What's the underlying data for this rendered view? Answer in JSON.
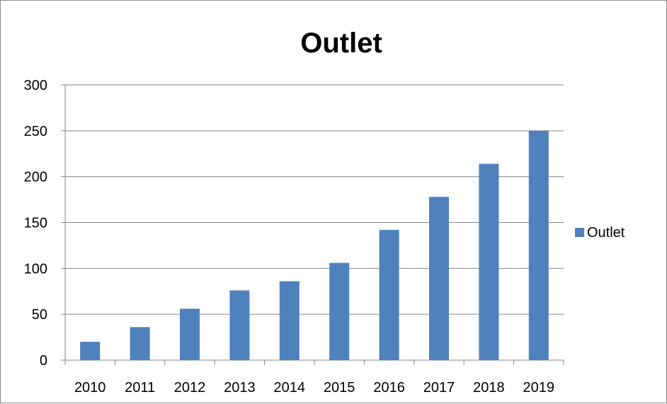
{
  "chart_data": {
    "type": "bar",
    "title": "Outlet",
    "xlabel": "",
    "ylabel": "",
    "categories": [
      "2010",
      "2011",
      "2012",
      "2013",
      "2014",
      "2015",
      "2016",
      "2017",
      "2018",
      "2019"
    ],
    "series": [
      {
        "name": "Outlet",
        "values": [
          20,
          36,
          56,
          76,
          86,
          106,
          142,
          178,
          214,
          250
        ],
        "color": "#4f81bd"
      }
    ],
    "ylim": [
      0,
      300
    ],
    "yticks": [
      "0",
      "50",
      "100",
      "150",
      "200",
      "250",
      "300"
    ],
    "grid": true,
    "legend_position": "right"
  }
}
